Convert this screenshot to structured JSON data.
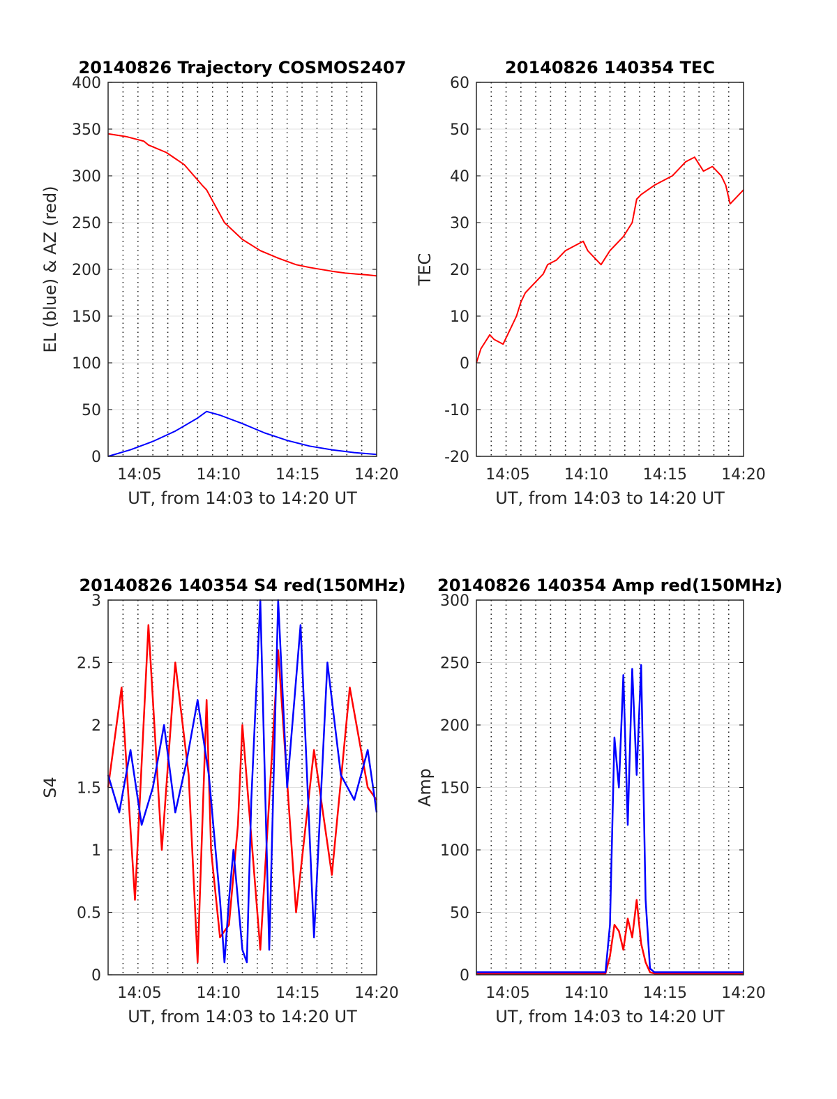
{
  "chart_data": [
    {
      "type": "line",
      "title": "20140826 Trajectory COSMOS2407",
      "xlabel": "UT, from 14:03 to 14:20 UT",
      "ylabel": "EL (blue) & AZ (red)",
      "xlim": [
        14.05,
        20.0
      ],
      "ylim": [
        0,
        400
      ],
      "x_ticks": [
        "14:05",
        "14:10",
        "14:15",
        "14:20"
      ],
      "y_ticks": [
        "0",
        "50",
        "100",
        "150",
        "200",
        "250",
        "300",
        "350",
        "400"
      ],
      "grid": "horizontal solid lines, vertical dotted lines",
      "colors": {
        "az": "#ff0000",
        "el": "#0000ff"
      },
      "series": [
        {
          "color": "#ff0000",
          "x": [
            14.0,
            14.4,
            14.8,
            14.9,
            15.3,
            15.7,
            16.1,
            16.2,
            16.6,
            17.0,
            17.4,
            17.8,
            18.2,
            18.5,
            19.0,
            19.3,
            19.8,
            20.0
          ],
          "values": [
            345,
            342,
            337,
            333,
            325,
            312,
            290,
            285,
            250,
            232,
            220,
            212,
            205,
            202,
            198,
            196,
            194,
            193
          ]
        },
        {
          "color": "#0000ff",
          "x": [
            14.0,
            14.5,
            15.0,
            15.5,
            16.0,
            16.2,
            16.5,
            17.0,
            17.5,
            18.0,
            18.5,
            19.0,
            19.5,
            20.0
          ],
          "values": [
            0,
            7,
            16,
            27,
            41,
            48,
            44,
            35,
            25,
            17,
            11,
            7,
            4,
            2
          ]
        }
      ]
    },
    {
      "type": "line",
      "title": "20140826 140354 TEC",
      "xlabel": "UT, from 14:03 to 14:20 UT",
      "ylabel": "TEC",
      "xlim": [
        14.05,
        20.0
      ],
      "ylim": [
        -20,
        60
      ],
      "x_ticks": [
        "14:05",
        "14:10",
        "14:15",
        "14:20"
      ],
      "y_ticks": [
        "-20",
        "-10",
        "0",
        "10",
        "20",
        "30",
        "40",
        "50",
        "60"
      ],
      "series": [
        {
          "color": "#ff0000",
          "x": [
            14.0,
            14.1,
            14.3,
            14.4,
            14.6,
            14.7,
            14.9,
            15.0,
            15.1,
            15.3,
            15.5,
            15.6,
            15.8,
            16.0,
            16.2,
            16.4,
            16.5,
            16.8,
            17.0,
            17.1,
            17.2,
            17.3,
            17.5,
            17.6,
            17.7,
            18.0,
            18.4,
            18.5,
            18.7,
            18.9,
            19.1,
            19.3,
            19.5,
            19.6,
            19.7,
            20.0
          ],
          "values": [
            0,
            3,
            6,
            5,
            4,
            6,
            10,
            13,
            15,
            17,
            19,
            21,
            22,
            24,
            25,
            26,
            24,
            21,
            24,
            25,
            26,
            27,
            30,
            35,
            36,
            38,
            40,
            41,
            43,
            44,
            41,
            42,
            40,
            38,
            34,
            37
          ]
        }
      ]
    },
    {
      "type": "line",
      "title": "20140826 140354 S4 red(150MHz)",
      "xlabel": "UT, from 14:03 to 14:20 UT",
      "ylabel": "S4",
      "xlim": [
        14.05,
        20.0
      ],
      "ylim": [
        0,
        3
      ],
      "x_ticks": [
        "14:05",
        "14:10",
        "14:15",
        "14:20"
      ],
      "y_ticks": [
        "0",
        "0.5",
        "1",
        "1.5",
        "2",
        "2.5",
        "3"
      ],
      "series": [
        {
          "color": "#ff0000",
          "x": [
            14.0,
            14.3,
            14.6,
            14.9,
            15.2,
            15.5,
            15.8,
            16.0,
            16.2,
            16.3,
            16.5,
            16.7,
            16.9,
            17.0,
            17.4,
            17.8,
            18.2,
            18.6,
            19.0,
            19.4,
            19.8,
            20.0
          ],
          "values": [
            1.5,
            2.3,
            0.6,
            2.8,
            1.0,
            2.5,
            1.6,
            0.1,
            2.2,
            1.0,
            0.3,
            0.4,
            1.2,
            2.0,
            0.2,
            2.6,
            0.5,
            1.8,
            0.8,
            2.3,
            1.5,
            1.4
          ]
        },
        {
          "color": "#0000ff",
          "x": [
            14.0,
            14.25,
            14.5,
            14.75,
            15.0,
            15.25,
            15.5,
            15.75,
            16.0,
            16.25,
            16.5,
            16.6,
            16.7,
            16.8,
            17.0,
            17.1,
            17.2,
            17.4,
            17.6,
            17.8,
            18.0,
            18.3,
            18.6,
            18.9,
            19.2,
            19.5,
            19.8,
            20.0
          ],
          "values": [
            1.6,
            1.3,
            1.8,
            1.2,
            1.5,
            2.0,
            1.3,
            1.7,
            2.2,
            1.6,
            0.6,
            0.1,
            0.6,
            1.0,
            0.2,
            0.1,
            1.4,
            3.0,
            0.2,
            3.0,
            1.5,
            2.8,
            0.3,
            2.5,
            1.6,
            1.4,
            1.8,
            1.3
          ]
        }
      ]
    },
    {
      "type": "line",
      "title": "20140826 140354 Amp red(150MHz)",
      "xlabel": "UT, from 14:03 to 14:20 UT",
      "ylabel": "Amp",
      "xlim": [
        14.05,
        20.0
      ],
      "ylim": [
        0,
        300
      ],
      "x_ticks": [
        "14:05",
        "14:10",
        "14:15",
        "14:20"
      ],
      "y_ticks": [
        "0",
        "50",
        "100",
        "150",
        "200",
        "250",
        "300"
      ],
      "series": [
        {
          "color": "#ff0000",
          "x": [
            14.0,
            15.5,
            16.9,
            17.0,
            17.1,
            17.2,
            17.3,
            17.4,
            17.5,
            17.6,
            17.7,
            17.8,
            17.9,
            18.0,
            19.0,
            20.0
          ],
          "values": [
            1,
            1,
            1,
            15,
            40,
            35,
            20,
            45,
            30,
            60,
            25,
            10,
            2,
            1,
            1,
            1
          ]
        },
        {
          "color": "#0000ff",
          "x": [
            14.0,
            15.5,
            16.9,
            17.0,
            17.1,
            17.2,
            17.3,
            17.4,
            17.5,
            17.6,
            17.7,
            17.8,
            17.9,
            18.0,
            19.0,
            20.0
          ],
          "values": [
            2,
            2,
            2,
            40,
            190,
            150,
            240,
            120,
            245,
            160,
            248,
            60,
            5,
            2,
            2,
            2
          ]
        }
      ]
    }
  ]
}
